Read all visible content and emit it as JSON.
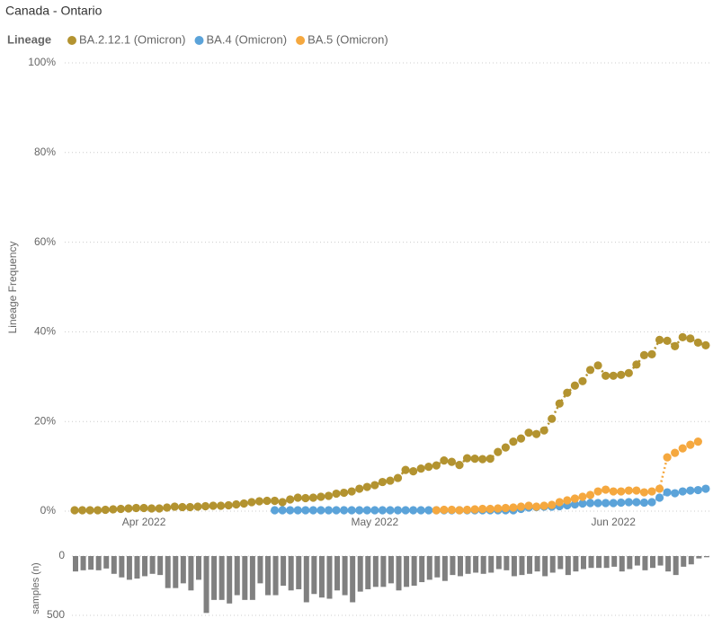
{
  "chart_data": [
    {
      "type": "line",
      "title": "Canada - Ontario",
      "legend_title": "Lineage",
      "ylabel": "Lineage Frequency",
      "categories": [
        null,
        null,
        null,
        null,
        null,
        null,
        null,
        null,
        null,
        "Apr 2022",
        null,
        null,
        null,
        null,
        null,
        null,
        null,
        null,
        null,
        null,
        null,
        null,
        null,
        null,
        null,
        null,
        null,
        null,
        null,
        null,
        null,
        null,
        null,
        null,
        null,
        null,
        null,
        null,
        null,
        "May 2022",
        null,
        null,
        null,
        null,
        null,
        null,
        null,
        null,
        null,
        null,
        null,
        null,
        null,
        null,
        null,
        null,
        null,
        null,
        null,
        null,
        null,
        null,
        null,
        null,
        null,
        null,
        null,
        null,
        null,
        null,
        "Jun 2022",
        null,
        null,
        null,
        null,
        null,
        null,
        null,
        null,
        null,
        null,
        null,
        null
      ],
      "series": [
        {
          "name": "BA.2.12.1 (Omicron)",
          "color": "#b39330",
          "values": [
            0.2,
            0.2,
            0.2,
            0.2,
            0.3,
            0.4,
            0.5,
            0.6,
            0.7,
            0.7,
            0.6,
            0.6,
            0.8,
            1.0,
            0.9,
            0.9,
            1.0,
            1.1,
            1.2,
            1.2,
            1.3,
            1.5,
            1.7,
            2.0,
            2.2,
            2.3,
            2.3,
            2.0,
            2.6,
            3.0,
            2.9,
            3.0,
            3.2,
            3.4,
            3.9,
            4.1,
            4.4,
            5.0,
            5.4,
            5.8,
            6.5,
            6.8,
            7.4,
            9.2,
            8.9,
            9.5,
            9.9,
            10.2,
            11.3,
            11.0,
            10.3,
            11.8,
            11.7,
            11.6,
            11.7,
            13.2,
            14.2,
            15.5,
            16.2,
            17.5,
            17.2,
            18.0,
            20.6,
            24.0,
            26.4,
            28.0,
            29.0,
            31.5,
            32.5,
            30.2,
            30.2,
            30.4,
            30.8,
            32.7,
            34.8,
            35.0,
            38.2,
            38.0,
            36.8,
            38.8,
            38.5,
            37.6,
            37.0
          ]
        },
        {
          "name": "BA.4 (Omicron)",
          "color": "#5ba3d9",
          "values": [
            null,
            null,
            null,
            null,
            null,
            null,
            null,
            null,
            null,
            null,
            null,
            null,
            null,
            null,
            null,
            null,
            null,
            null,
            null,
            null,
            null,
            null,
            null,
            null,
            null,
            null,
            0.2,
            0.2,
            0.2,
            0.2,
            0.2,
            0.2,
            0.2,
            0.2,
            0.2,
            0.2,
            0.2,
            0.2,
            0.2,
            0.2,
            0.2,
            0.2,
            0.2,
            0.2,
            0.2,
            0.2,
            0.2,
            0.2,
            0.2,
            0.2,
            0.2,
            0.2,
            0.2,
            0.2,
            0.2,
            0.2,
            0.2,
            0.2,
            0.5,
            0.8,
            0.9,
            1.0,
            1.0,
            1.1,
            1.3,
            1.5,
            1.7,
            1.8,
            1.8,
            1.8,
            1.8,
            1.9,
            2.0,
            2.0,
            1.9,
            2.0,
            3.0,
            4.2,
            4.0,
            4.4,
            4.6,
            4.7,
            5.0
          ]
        },
        {
          "name": "BA.5 (Omicron)",
          "color": "#f5a83f",
          "values": [
            null,
            null,
            null,
            null,
            null,
            null,
            null,
            null,
            null,
            null,
            null,
            null,
            null,
            null,
            null,
            null,
            null,
            null,
            null,
            null,
            null,
            null,
            null,
            null,
            null,
            null,
            null,
            null,
            null,
            null,
            null,
            null,
            null,
            null,
            null,
            null,
            null,
            null,
            null,
            null,
            null,
            null,
            null,
            null,
            null,
            null,
            null,
            0.2,
            0.3,
            0.3,
            0.2,
            0.3,
            0.4,
            0.5,
            0.5,
            0.6,
            0.7,
            0.8,
            1.0,
            1.2,
            1.0,
            1.2,
            1.4,
            2.0,
            2.4,
            2.8,
            3.2,
            3.6,
            4.4,
            4.8,
            4.4,
            4.4,
            4.6,
            4.6,
            4.2,
            4.4,
            5.0,
            12.0,
            13.0,
            14.0,
            14.8,
            15.5,
            null
          ]
        }
      ],
      "ylim": [
        0,
        100
      ],
      "yticks": [
        {
          "value": 0,
          "label": "0%"
        },
        {
          "value": 20,
          "label": "20%"
        },
        {
          "value": 40,
          "label": "40%"
        },
        {
          "value": 60,
          "label": "60%"
        },
        {
          "value": 80,
          "label": "80%"
        },
        {
          "value": 100,
          "label": "100%"
        }
      ],
      "grid": true
    },
    {
      "type": "bar",
      "ylabel": "samples (n)",
      "color": "#808080",
      "values": [
        130,
        120,
        115,
        120,
        105,
        150,
        180,
        200,
        190,
        170,
        150,
        160,
        270,
        270,
        230,
        290,
        200,
        480,
        370,
        370,
        400,
        330,
        370,
        370,
        230,
        330,
        330,
        250,
        290,
        280,
        390,
        320,
        350,
        360,
        290,
        330,
        390,
        300,
        280,
        260,
        260,
        230,
        290,
        260,
        250,
        220,
        200,
        180,
        210,
        160,
        170,
        150,
        140,
        150,
        140,
        110,
        120,
        170,
        160,
        150,
        130,
        170,
        140,
        110,
        160,
        130,
        110,
        100,
        100,
        100,
        90,
        130,
        110,
        80,
        120,
        100,
        80,
        130,
        160,
        90,
        70,
        20,
        10
      ],
      "ylim": [
        0,
        500
      ],
      "yticks": [
        0,
        500
      ],
      "grid": true
    }
  ]
}
